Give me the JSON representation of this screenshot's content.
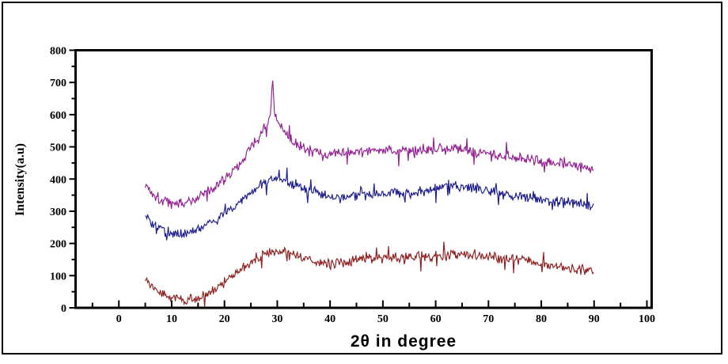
{
  "figure": {
    "background": "#ffffff",
    "border_color": "#000000"
  },
  "chart_data": {
    "type": "line",
    "title": "",
    "xlabel": "2θ in degree",
    "ylabel": "Intensity(a.u)",
    "xlim": [
      -8.2,
      100.9
    ],
    "ylim": [
      0,
      800
    ],
    "x_ticks": [
      0,
      10,
      20,
      30,
      40,
      50,
      60,
      70,
      80,
      90,
      100
    ],
    "x_minor_ticks": [
      -5,
      5,
      15,
      25,
      35,
      45,
      55,
      65,
      75,
      85,
      95
    ],
    "y_ticks": [
      0,
      100,
      200,
      300,
      400,
      500,
      600,
      700,
      800
    ],
    "y_minor_ticks": [
      50,
      150,
      250,
      350,
      450,
      550,
      650,
      750
    ],
    "grid": false,
    "legend": null,
    "sampling": {
      "x_start": 5,
      "x_end": 90,
      "step": 0.15,
      "noise_seed": 1337
    },
    "series": [
      {
        "name": "pattern-top-magenta",
        "color": "#932093",
        "noise_amplitude": 20,
        "sharp_peak": {
          "x": 29.1,
          "height": 112,
          "sigma": 0.18
        },
        "keypoints": [
          [
            5,
            385
          ],
          [
            6,
            362
          ],
          [
            8,
            335
          ],
          [
            10,
            325
          ],
          [
            12,
            325
          ],
          [
            14,
            335
          ],
          [
            16,
            350
          ],
          [
            18,
            372
          ],
          [
            20,
            400
          ],
          [
            22,
            432
          ],
          [
            24,
            470
          ],
          [
            26,
            520
          ],
          [
            27.5,
            555
          ],
          [
            29,
            600
          ],
          [
            30,
            585
          ],
          [
            31,
            550
          ],
          [
            32,
            530
          ],
          [
            34,
            505
          ],
          [
            36,
            490
          ],
          [
            38,
            478
          ],
          [
            40,
            475
          ],
          [
            44,
            482
          ],
          [
            48,
            490
          ],
          [
            52,
            492
          ],
          [
            56,
            490
          ],
          [
            60,
            492
          ],
          [
            64,
            495
          ],
          [
            68,
            485
          ],
          [
            72,
            475
          ],
          [
            76,
            468
          ],
          [
            80,
            455
          ],
          [
            84,
            448
          ],
          [
            87,
            438
          ],
          [
            90,
            428
          ]
        ]
      },
      {
        "name": "pattern-middle-blue",
        "color": "#1C1C8C",
        "noise_amplitude": 18,
        "sharp_peak": null,
        "keypoints": [
          [
            5,
            283
          ],
          [
            6,
            265
          ],
          [
            8,
            243
          ],
          [
            10,
            232
          ],
          [
            12,
            230
          ],
          [
            14,
            238
          ],
          [
            16,
            252
          ],
          [
            18,
            270
          ],
          [
            20,
            292
          ],
          [
            22,
            318
          ],
          [
            24,
            345
          ],
          [
            26,
            372
          ],
          [
            28,
            393
          ],
          [
            29.5,
            400
          ],
          [
            31,
            398
          ],
          [
            33,
            385
          ],
          [
            35,
            372
          ],
          [
            37,
            360
          ],
          [
            39,
            350
          ],
          [
            41,
            345
          ],
          [
            44,
            348
          ],
          [
            48,
            352
          ],
          [
            52,
            355
          ],
          [
            56,
            358
          ],
          [
            60,
            368
          ],
          [
            63,
            378
          ],
          [
            66,
            375
          ],
          [
            70,
            362
          ],
          [
            74,
            350
          ],
          [
            78,
            342
          ],
          [
            82,
            333
          ],
          [
            86,
            325
          ],
          [
            90,
            318
          ]
        ]
      },
      {
        "name": "pattern-bottom-darkred",
        "color": "#8E1F1F",
        "noise_amplitude": 18,
        "sharp_peak": null,
        "keypoints": [
          [
            5,
            88
          ],
          [
            6,
            70
          ],
          [
            8,
            45
          ],
          [
            10,
            30
          ],
          [
            12,
            25
          ],
          [
            14,
            25
          ],
          [
            16,
            35
          ],
          [
            18,
            55
          ],
          [
            20,
            80
          ],
          [
            22,
            105
          ],
          [
            24,
            130
          ],
          [
            26,
            152
          ],
          [
            28,
            168
          ],
          [
            30,
            175
          ],
          [
            32,
            172
          ],
          [
            34,
            162
          ],
          [
            36,
            150
          ],
          [
            38,
            140
          ],
          [
            40,
            138
          ],
          [
            43,
            142
          ],
          [
            46,
            150
          ],
          [
            50,
            155
          ],
          [
            54,
            158
          ],
          [
            58,
            158
          ],
          [
            62,
            162
          ],
          [
            65,
            165
          ],
          [
            68,
            160
          ],
          [
            72,
            155
          ],
          [
            76,
            148
          ],
          [
            80,
            138
          ],
          [
            84,
            128
          ],
          [
            87,
            120
          ],
          [
            90,
            112
          ]
        ]
      }
    ]
  }
}
